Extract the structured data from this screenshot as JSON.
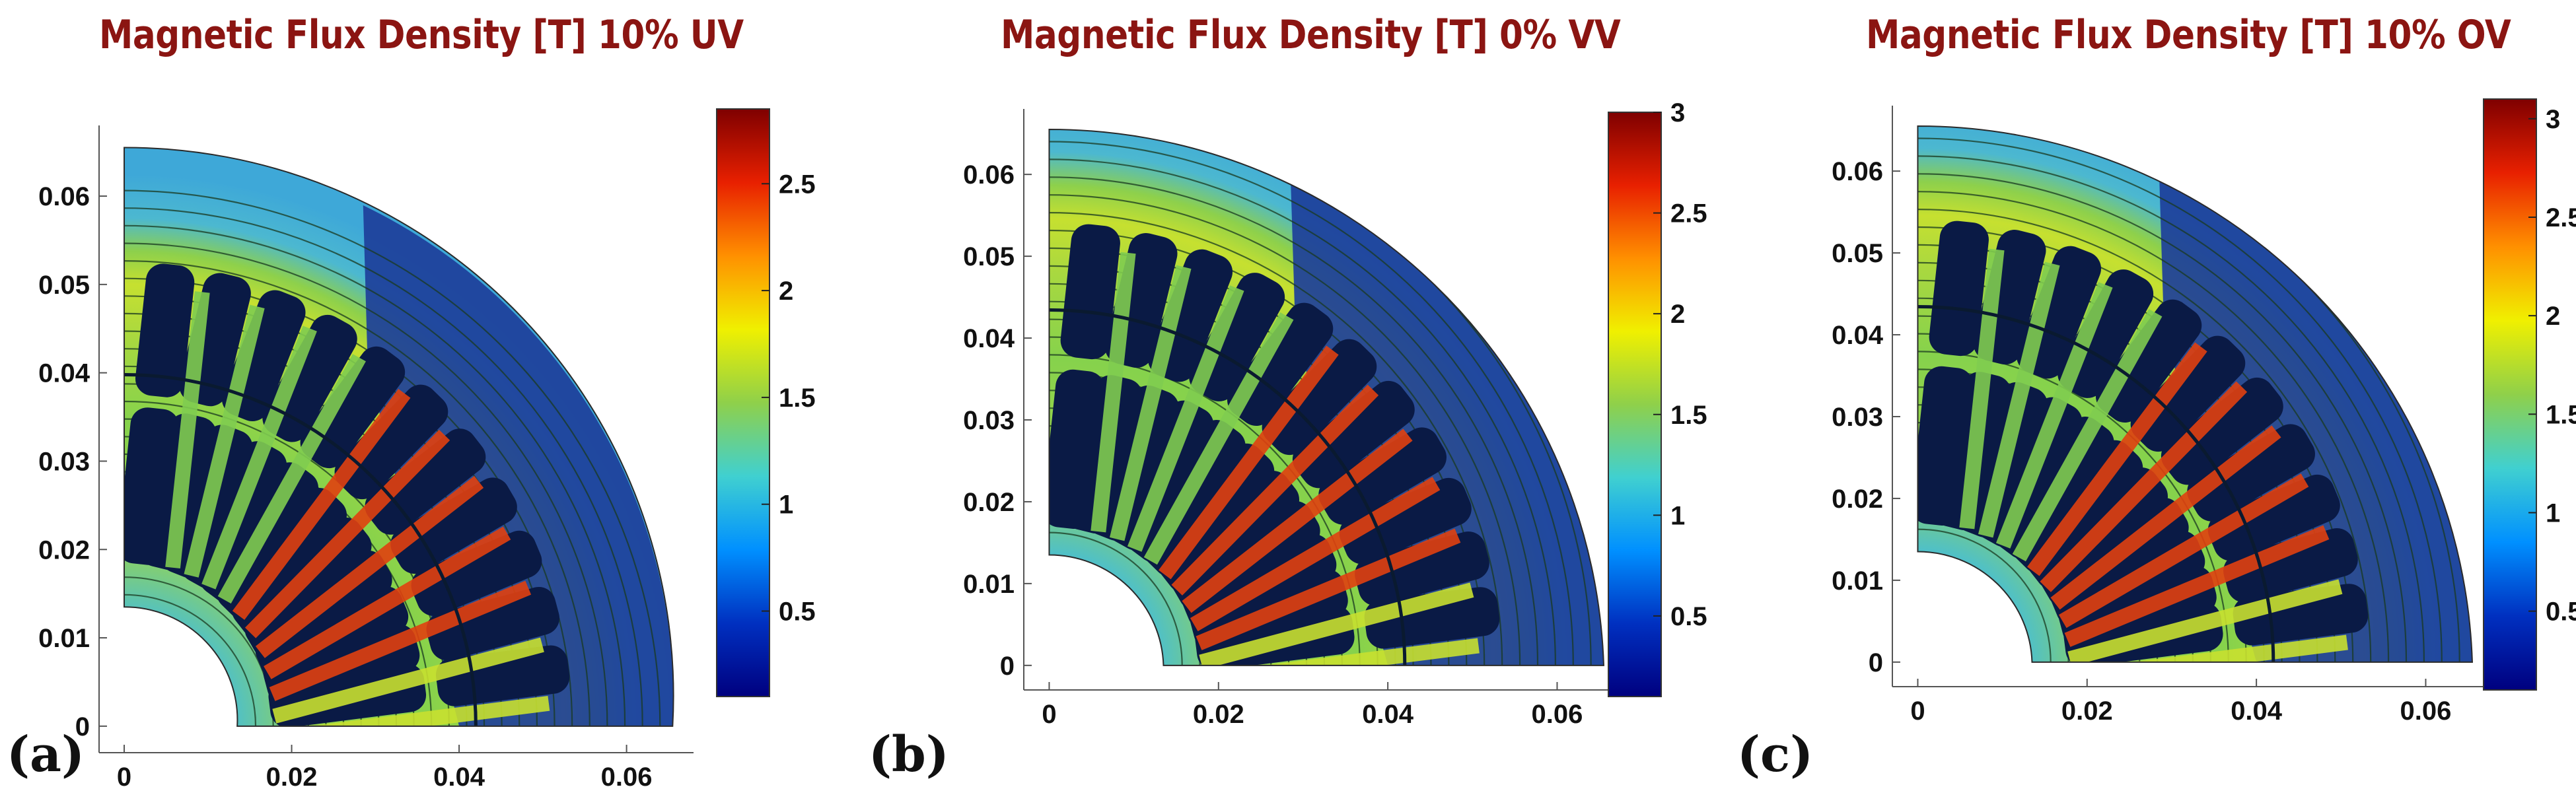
{
  "chart_data": [
    {
      "type": "heatmap",
      "panel_label": "(a)",
      "title": "Magnetic Flux Density [T] 10% UV",
      "x_ticks": [
        "0",
        "0.02",
        "0.04",
        "0.06"
      ],
      "y_ticks": [
        "0",
        "0.01",
        "0.02",
        "0.03",
        "0.04",
        "0.05",
        "0.06"
      ],
      "xlim": [
        -0.003,
        0.068
      ],
      "ylim": [
        -0.003,
        0.068
      ],
      "colorbar": {
        "ticks": [
          "0.5",
          "1",
          "1.5",
          "2",
          "2.5"
        ],
        "range": [
          0.1,
          2.85
        ]
      }
    },
    {
      "type": "heatmap",
      "panel_label": "(b)",
      "title": "Magnetic Flux Density [T] 0% VV",
      "x_ticks": [
        "0",
        "0.02",
        "0.04",
        "0.06"
      ],
      "y_ticks": [
        "0",
        "0.01",
        "0.02",
        "0.03",
        "0.04",
        "0.05",
        "0.06"
      ],
      "xlim": [
        -0.003,
        0.068
      ],
      "ylim": [
        -0.003,
        0.068
      ],
      "colorbar": {
        "ticks": [
          "0.5",
          "1",
          "1.5",
          "2",
          "2.5",
          "3"
        ],
        "range": [
          0.1,
          3.0
        ]
      }
    },
    {
      "type": "heatmap",
      "panel_label": "(c)",
      "title": "Magnetic Flux Density [T] 10% OV",
      "x_ticks": [
        "0",
        "0.02",
        "0.04",
        "0.06"
      ],
      "y_ticks": [
        "0",
        "0.01",
        "0.02",
        "0.03",
        "0.04",
        "0.05",
        "0.06"
      ],
      "xlim": [
        -0.003,
        0.068
      ],
      "ylim": [
        -0.003,
        0.068
      ],
      "colorbar": {
        "ticks": [
          "0.5",
          "1",
          "1.5",
          "2",
          "2.5",
          "3"
        ],
        "range": [
          0.1,
          3.1
        ]
      }
    }
  ],
  "colormap": [
    "#00007f",
    "#0030c0",
    "#0090ff",
    "#40d0d0",
    "#8fd04a",
    "#f0f000",
    "#ff9000",
    "#e82000",
    "#7f0000"
  ]
}
